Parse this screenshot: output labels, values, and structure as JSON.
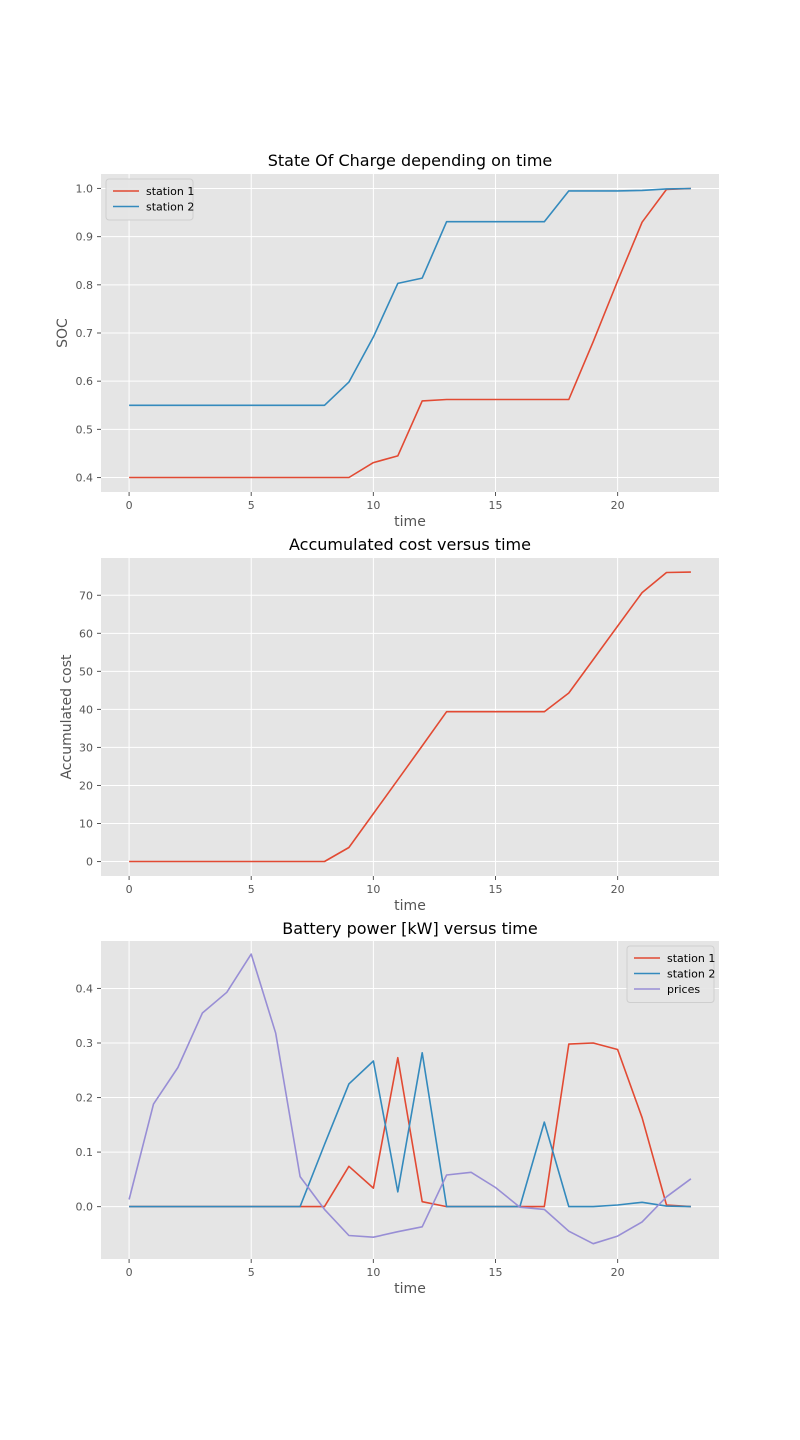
{
  "figure": {
    "background": "#ffffff",
    "axes_facecolor": "#e5e5e5",
    "grid_color": "#ffffff"
  },
  "chart_data": [
    {
      "type": "line",
      "title": "State Of Charge depending on time",
      "xlabel": "time",
      "ylabel": "SOC",
      "xlim": [
        -1.15,
        24.15
      ],
      "ylim": [
        0.37,
        1.03
      ],
      "xticks": [
        0,
        5,
        10,
        15,
        20
      ],
      "xtick_labels": [
        "0",
        "5",
        "10",
        "15",
        "20"
      ],
      "yticks": [
        0.4,
        0.5,
        0.6,
        0.7,
        0.8,
        0.9,
        1.0
      ],
      "ytick_labels": [
        "0.4",
        "0.5",
        "0.6",
        "0.7",
        "0.8",
        "0.9",
        "1.0"
      ],
      "grid": true,
      "legend": "upper left",
      "x": [
        0,
        1,
        2,
        3,
        4,
        5,
        6,
        7,
        8,
        9,
        10,
        11,
        12,
        13,
        14,
        15,
        16,
        17,
        18,
        19,
        20,
        21,
        22,
        23
      ],
      "series": [
        {
          "name": "station 1",
          "color": "#e24a33",
          "values": [
            0.4,
            0.4,
            0.4,
            0.4,
            0.4,
            0.4,
            0.4,
            0.4,
            0.4,
            0.4,
            0.431,
            0.445,
            0.559,
            0.562,
            0.562,
            0.562,
            0.562,
            0.562,
            0.562,
            0.682,
            0.808,
            0.93,
            0.998,
            1.0
          ]
        },
        {
          "name": "station 2",
          "color": "#348abd",
          "values": [
            0.55,
            0.55,
            0.55,
            0.55,
            0.55,
            0.55,
            0.55,
            0.55,
            0.55,
            0.598,
            0.692,
            0.803,
            0.814,
            0.931,
            0.931,
            0.931,
            0.931,
            0.931,
            0.995,
            0.995,
            0.995,
            0.996,
            0.999,
            1.0
          ]
        }
      ]
    },
    {
      "type": "line",
      "title": "Accumulated cost versus time",
      "xlabel": "time",
      "ylabel": "Accumulated cost",
      "xlim": [
        -1.15,
        24.15
      ],
      "ylim": [
        -3.8,
        79.8
      ],
      "xticks": [
        0,
        5,
        10,
        15,
        20
      ],
      "xtick_labels": [
        "0",
        "5",
        "10",
        "15",
        "20"
      ],
      "yticks": [
        0,
        10,
        20,
        30,
        40,
        50,
        60,
        70
      ],
      "ytick_labels": [
        "0",
        "10",
        "20",
        "30",
        "40",
        "50",
        "60",
        "70"
      ],
      "grid": true,
      "legend": "none",
      "x": [
        0,
        1,
        2,
        3,
        4,
        5,
        6,
        7,
        8,
        9,
        10,
        11,
        12,
        13,
        14,
        15,
        16,
        17,
        18,
        19,
        20,
        21,
        22,
        23
      ],
      "series": [
        {
          "color": "#e24a33",
          "values": [
            0,
            0,
            0,
            0,
            0,
            0,
            0,
            0,
            0,
            3.7,
            12.6,
            21.5,
            30.4,
            39.4,
            39.4,
            39.4,
            39.4,
            39.4,
            44.3,
            53.1,
            61.9,
            70.7,
            76.0,
            76.1
          ]
        }
      ]
    },
    {
      "type": "line",
      "title": "Battery power [kW] versus time",
      "xlabel": "time",
      "ylabel": "",
      "xlim": [
        -1.15,
        24.15
      ],
      "ylim": [
        -0.096,
        0.487
      ],
      "xticks": [
        0,
        5,
        10,
        15,
        20
      ],
      "xtick_labels": [
        "0",
        "5",
        "10",
        "15",
        "20"
      ],
      "yticks": [
        0.0,
        0.1,
        0.2,
        0.3,
        0.4
      ],
      "ytick_labels": [
        "0.0",
        "0.1",
        "0.2",
        "0.3",
        "0.4"
      ],
      "grid": true,
      "legend": "upper right",
      "x": [
        0,
        1,
        2,
        3,
        4,
        5,
        6,
        7,
        8,
        9,
        10,
        11,
        12,
        13,
        14,
        15,
        16,
        17,
        18,
        19,
        20,
        21,
        22,
        23
      ],
      "series": [
        {
          "name": "station 1",
          "color": "#e24a33",
          "values": [
            0,
            0,
            0,
            0,
            0,
            0,
            0,
            0,
            0,
            0.074,
            0.034,
            0.273,
            0.009,
            0,
            0,
            0,
            0,
            0,
            0.298,
            0.3,
            0.288,
            0.163,
            0.003,
            0
          ]
        },
        {
          "name": "station 2",
          "color": "#348abd",
          "values": [
            0,
            0,
            0,
            0,
            0,
            0,
            0,
            0,
            0.114,
            0.225,
            0.267,
            0.027,
            0.282,
            0,
            0,
            0,
            0,
            0.155,
            0,
            0,
            0.003,
            0.008,
            0.001,
            0
          ]
        },
        {
          "name": "prices",
          "color": "#988ed5",
          "values": [
            0.013,
            0.188,
            0.255,
            0.355,
            0.393,
            0.463,
            0.318,
            0.055,
            -0.005,
            -0.053,
            -0.056,
            -0.046,
            -0.037,
            0.058,
            0.063,
            0.035,
            -0.001,
            -0.005,
            -0.045,
            -0.068,
            -0.054,
            -0.028,
            0.018,
            0.051
          ]
        }
      ]
    }
  ]
}
